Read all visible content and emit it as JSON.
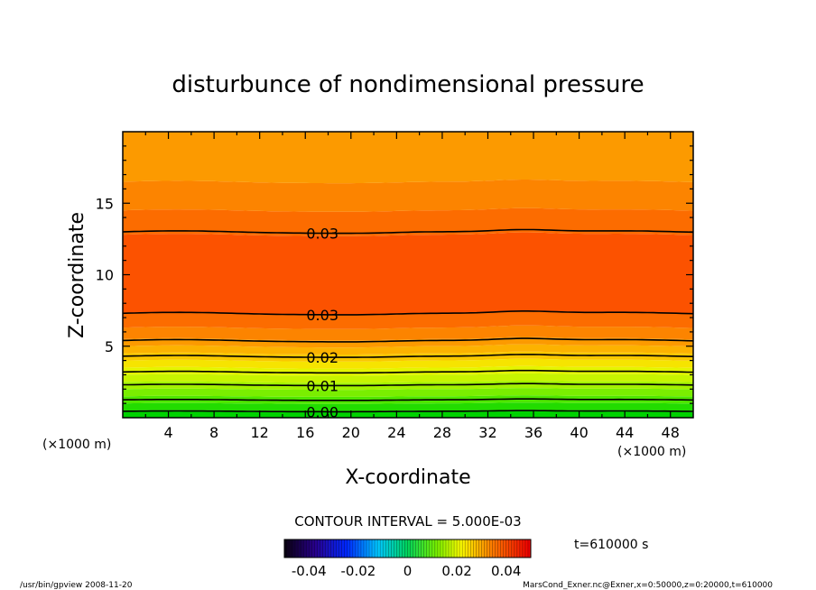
{
  "chart_data": {
    "type": "contour",
    "title": "disturbunce of nondimensional pressure",
    "xlabel": "X-coordinate",
    "ylabel": "Z-coordinate",
    "x_unit_left": "(×1000 m)",
    "x_unit_right": "(×1000 m)",
    "xlim": [
      0,
      50
    ],
    "ylim": [
      0,
      20
    ],
    "xticks": [
      4,
      8,
      12,
      16,
      20,
      24,
      28,
      32,
      36,
      40,
      44,
      48
    ],
    "yticks": [
      5,
      10,
      15
    ],
    "fill_bands": [
      {
        "z0": 0.0,
        "z1": 0.5,
        "color": "#00d200"
      },
      {
        "z0": 0.5,
        "z1": 1.0,
        "color": "#22dc00"
      },
      {
        "z0": 1.0,
        "z1": 1.5,
        "color": "#4ee600"
      },
      {
        "z0": 1.5,
        "z1": 2.0,
        "color": "#7aee00"
      },
      {
        "z0": 2.0,
        "z1": 2.5,
        "color": "#a2f200"
      },
      {
        "z0": 2.5,
        "z1": 3.0,
        "color": "#c6f400"
      },
      {
        "z0": 3.0,
        "z1": 3.5,
        "color": "#e4f400"
      },
      {
        "z0": 3.5,
        "z1": 4.0,
        "color": "#f6e400"
      },
      {
        "z0": 4.0,
        "z1": 4.5,
        "color": "#fac800"
      },
      {
        "z0": 4.5,
        "z1": 5.0,
        "color": "#fcb200"
      },
      {
        "z0": 5.0,
        "z1": 5.5,
        "color": "#fc9a00"
      },
      {
        "z0": 5.5,
        "z1": 6.3,
        "color": "#fc8400"
      },
      {
        "z0": 6.3,
        "z1": 7.3,
        "color": "#fc6c00"
      },
      {
        "z0": 7.3,
        "z1": 12.8,
        "color": "#fc5200"
      },
      {
        "z0": 12.8,
        "z1": 14.5,
        "color": "#fc6c00"
      },
      {
        "z0": 14.5,
        "z1": 16.5,
        "color": "#fc8400"
      },
      {
        "z0": 16.5,
        "z1": 20.0,
        "color": "#fc9a00"
      }
    ],
    "contours": [
      {
        "level": "0.00",
        "z": 0.45,
        "label": "0.00"
      },
      {
        "level": "0.005",
        "z": 1.25,
        "label": ""
      },
      {
        "level": "0.01",
        "z": 2.3,
        "label": "0.01"
      },
      {
        "level": "0.015",
        "z": 3.2,
        "label": ""
      },
      {
        "level": "0.02",
        "z": 4.3,
        "label": "0.02"
      },
      {
        "level": "0.025",
        "z": 5.4,
        "label": ""
      },
      {
        "level": "0.03",
        "z": 7.3,
        "label": "0.03"
      },
      {
        "level": "0.03",
        "z": 13.0,
        "label": "0.03"
      }
    ],
    "contour_interval_text": "CONTOUR INTERVAL = 5.000E-03",
    "colorbar": {
      "range": [
        -0.05,
        0.05
      ],
      "ticks": [
        "-0.04",
        "-0.02",
        "0",
        "0.02",
        "0.04"
      ],
      "tick_values": [
        -0.04,
        -0.02,
        0,
        0.02,
        0.04
      ]
    },
    "time_label": "t=610000 s",
    "footer_left": "/usr/bin/gpview   2008-11-20",
    "footer_right": "MarsCond_Exner.nc@Exner,x=0:50000,z=0:20000,t=610000"
  }
}
